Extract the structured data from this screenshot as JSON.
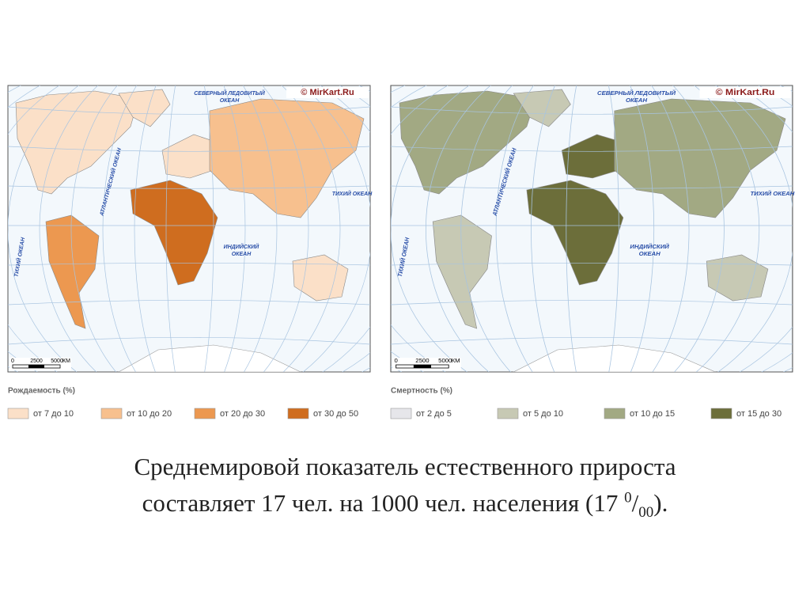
{
  "maps": [
    {
      "copyright": "© MirKart.Ru",
      "oceans": {
        "arctic_1": "СЕВЕРНЫЙ ЛЕДОВИТЫЙ",
        "arctic_2": "ОКЕАН",
        "atlantic": "АТЛАНТИЧЕСКИЙ ОКЕАН",
        "pacific_east": "ТИХИЙ ОКЕАН",
        "pacific_west": "ТИХИЙ ОКЕАН",
        "indian_1": "ИНДИЙСКИЙ",
        "indian_2": "ОКЕАН"
      },
      "scale": [
        "0",
        "2500",
        "5000",
        "КМ"
      ],
      "legend": {
        "title": "Рождаемость (%)",
        "items": [
          {
            "label": "от 7 до 10",
            "color": "#fbe0c8"
          },
          {
            "label": "от 10 до 20",
            "color": "#f7c08e"
          },
          {
            "label": "от 20 до 30",
            "color": "#ec9850"
          },
          {
            "label": "от 30 до 50",
            "color": "#cf6d1f"
          }
        ]
      }
    },
    {
      "copyright": "© MirKart.Ru",
      "oceans": {
        "arctic_1": "СЕВЕРНЫЙ ЛЕДОВИТЫЙ",
        "arctic_2": "ОКЕАН",
        "atlantic": "АТЛАНТИЧЕСКИЙ ОКЕАН",
        "pacific_east": "ТИХИЙ ОКЕАН",
        "pacific_west": "ТИХИЙ ОКЕАН",
        "indian_1": "ИНДИЙСКИЙ",
        "indian_2": "ОКЕАН"
      },
      "scale": [
        "0",
        "2500",
        "5000",
        "КМ"
      ],
      "legend": {
        "title": "Смертность (%)",
        "items": [
          {
            "label": "от 2 до 5",
            "color": "#e6e6ea"
          },
          {
            "label": "от 5 до 10",
            "color": "#c7c9b4"
          },
          {
            "label": "от 10 до 15",
            "color": "#a2a983"
          },
          {
            "label": "от 15 до 30",
            "color": "#6c6e3a"
          }
        ]
      }
    }
  ],
  "caption": {
    "line1": "Среднемировой показатель естественного прироста",
    "line2": "составляет 17 чел. на 1000 чел. населения (17 ",
    "sup": "0",
    "slash": "/",
    "sub": "00",
    "end": ")."
  }
}
